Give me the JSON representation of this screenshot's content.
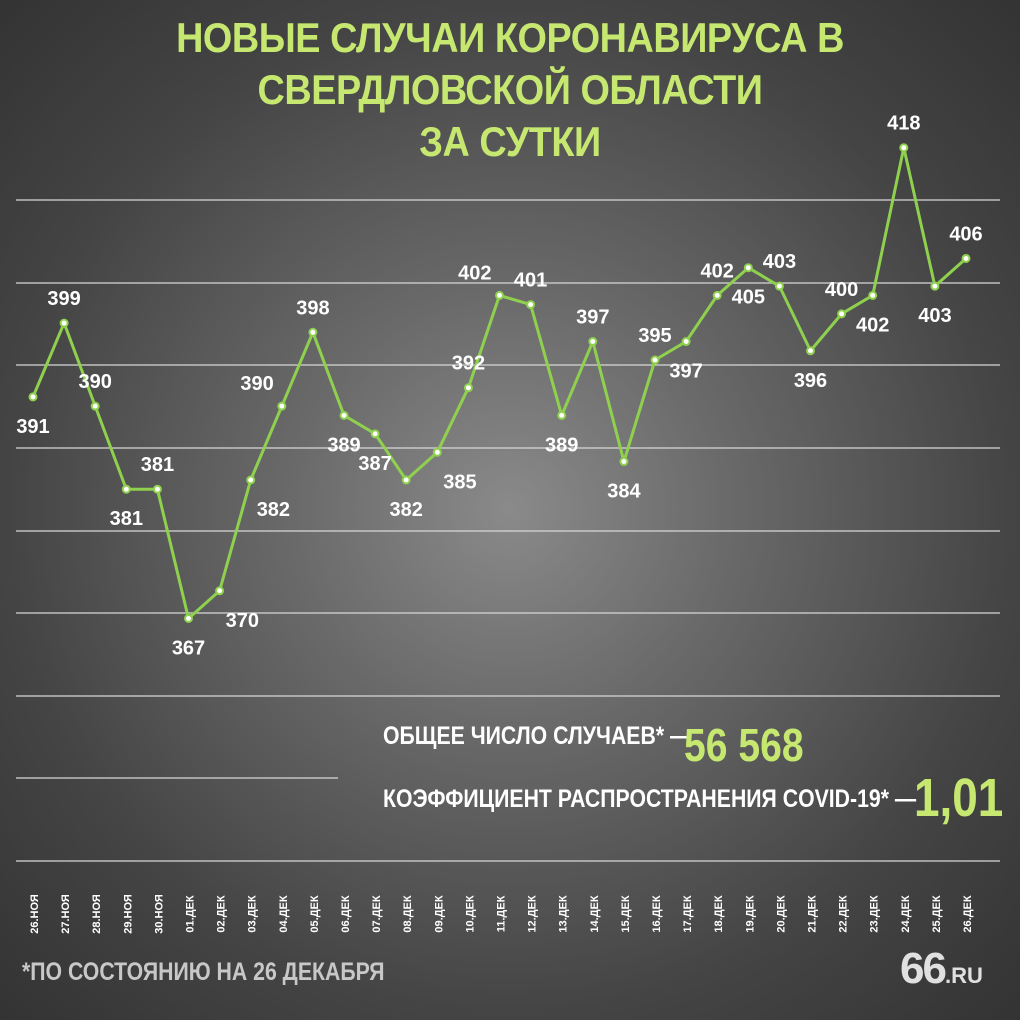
{
  "title": {
    "line1": "НОВЫЕ СЛУЧАИ КОРОНАВИРУСА В СВЕРДЛОВСКОЙ ОБЛАСТИ",
    "line2": "ЗА СУТКИ"
  },
  "stats": {
    "total_label": "ОБЩЕЕ ЧИСЛО СЛУЧАЕВ* —",
    "total_value": "56 568",
    "rate_label": "КОЭФФИЦИЕНТ РАСПРОСТРАНЕНИЯ COVID-19* —",
    "rate_value": "1,01"
  },
  "footnote": "*ПО СОСТОЯНИЮ НА 26 ДЕКАБРЯ",
  "logo": {
    "main": "66",
    "suffix": ".RU"
  },
  "colors": {
    "accent": "#c6e870",
    "line": "#8fd14f",
    "text": "#ffffff",
    "grid": "#d8d8d8"
  },
  "chart_data": {
    "type": "line",
    "categories": [
      "26.НОЯ",
      "27.НОЯ",
      "28.НОЯ",
      "29.НОЯ",
      "30.НОЯ",
      "01.ДЕК",
      "02.ДЕК",
      "03.ДЕК",
      "04.ДЕК",
      "05.ДЕК",
      "06.ДЕК",
      "07.ДЕК",
      "08.ДЕК",
      "09.ДЕК",
      "10.ДЕК",
      "11.ДЕК",
      "12.ДЕК",
      "13.ДЕК",
      "14.ДЕК",
      "15.ДЕК",
      "16.ДЕК",
      "17.ДЕК",
      "18.ДЕК",
      "19.ДЕК",
      "20.ДЕК",
      "21.ДЕК",
      "22.ДЕК",
      "23.ДЕК",
      "24.ДЕК",
      "25.ДЕК",
      "26.ДЕК"
    ],
    "series": [
      {
        "values": [
          391,
          399,
          390,
          381,
          381,
          367,
          370,
          382,
          390,
          398,
          389,
          387,
          382,
          385,
          392,
          402,
          401,
          389,
          397,
          384,
          395,
          397,
          402,
          405,
          403,
          396,
          400,
          402,
          418,
          403,
          406
        ]
      }
    ],
    "label_positions": [
      "below",
      "above",
      "above",
      "below",
      "above",
      "below",
      "right",
      "right",
      "left",
      "above",
      "below",
      "below",
      "below",
      "right",
      "above",
      "left",
      "above",
      "below",
      "above",
      "below",
      "above",
      "below",
      "above",
      "below",
      "above",
      "below",
      "above",
      "below",
      "above",
      "below",
      "above"
    ],
    "ylim": [
      356,
      421
    ],
    "grid": true,
    "title": "НОВЫЕ СЛУЧАИ КОРОНАВИРУСА В СВЕРДЛОВСКОЙ ОБЛАСТИ ЗА СУТКИ",
    "xlabel": "",
    "ylabel": ""
  }
}
